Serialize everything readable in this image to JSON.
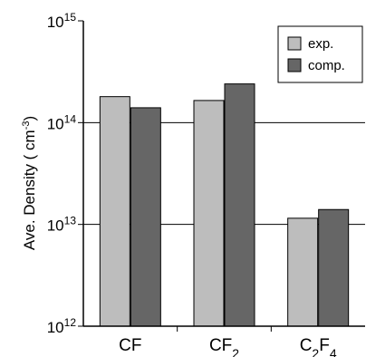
{
  "chart_data": {
    "type": "bar",
    "categories": [
      {
        "base": "CF",
        "sub": ""
      },
      {
        "base": "CF",
        "sub": "2"
      },
      {
        "base": "C",
        "sub": "2",
        "base2": "F",
        "sub2": "4"
      }
    ],
    "series": [
      {
        "name": "exp.",
        "color": "#bdbdbd",
        "values": [
          180000000000000.0,
          165000000000000.0,
          11500000000000.0
        ]
      },
      {
        "name": "comp.",
        "color": "#666666",
        "values": [
          140000000000000.0,
          240000000000000.0,
          14000000000000.0
        ]
      }
    ],
    "yscale": "log",
    "ylim": [
      1000000000000.0,
      1000000000000000.0
    ],
    "yticks": [
      {
        "value": 1000000000000.0,
        "base": "10",
        "exp": "12"
      },
      {
        "value": 10000000000000.0,
        "base": "10",
        "exp": "13"
      },
      {
        "value": 100000000000000.0,
        "base": "10",
        "exp": "14"
      },
      {
        "value": 1000000000000000.0,
        "base": "10",
        "exp": "15"
      }
    ],
    "ylabel": {
      "text": "Ave. Density ( cm",
      "sup": "-3",
      "tail": ")"
    },
    "xlabel": "",
    "title": "",
    "grid": "horizontal at decades",
    "legend": "top-right"
  }
}
